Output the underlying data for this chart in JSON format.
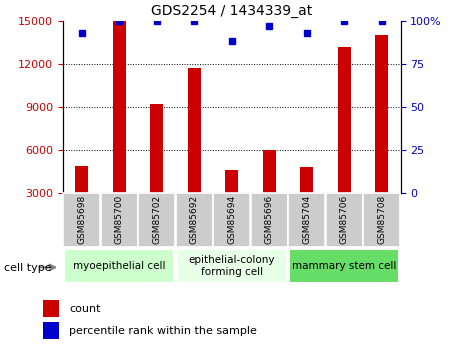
{
  "title": "GDS2254 / 1434339_at",
  "categories": [
    "GSM85698",
    "GSM85700",
    "GSM85702",
    "GSM85692",
    "GSM85694",
    "GSM85696",
    "GSM85704",
    "GSM85706",
    "GSM85708"
  ],
  "bar_values": [
    4900,
    15000,
    9200,
    11700,
    4600,
    6000,
    4800,
    13200,
    14000
  ],
  "percentile_values": [
    93,
    100,
    100,
    100,
    88,
    97,
    93,
    100,
    100
  ],
  "cell_types": [
    {
      "label": "myoepithelial cell",
      "start": 0,
      "end": 3,
      "color": "#ccffcc"
    },
    {
      "label": "epithelial-colony\nforming cell",
      "start": 3,
      "end": 6,
      "color": "#e8ffe8"
    },
    {
      "label": "mammary stem cell",
      "start": 6,
      "end": 9,
      "color": "#66dd66"
    }
  ],
  "bar_color": "#cc0000",
  "percentile_color": "#0000cc",
  "left_axis_color": "#cc0000",
  "right_axis_color": "#0000cc",
  "ymin": 3000,
  "ymax": 15000,
  "yticks_left": [
    3000,
    6000,
    9000,
    12000,
    15000
  ],
  "yticks_right": [
    0,
    25,
    50,
    75,
    100
  ],
  "ytick_labels_right": [
    "0",
    "25",
    "50",
    "75",
    "100%"
  ],
  "grid_values": [
    6000,
    9000,
    12000
  ],
  "legend_items": [
    {
      "label": "count",
      "color": "#cc0000"
    },
    {
      "label": "percentile rank within the sample",
      "color": "#0000cc"
    }
  ],
  "cell_type_label": "cell type",
  "tick_label_bg": "#cccccc"
}
